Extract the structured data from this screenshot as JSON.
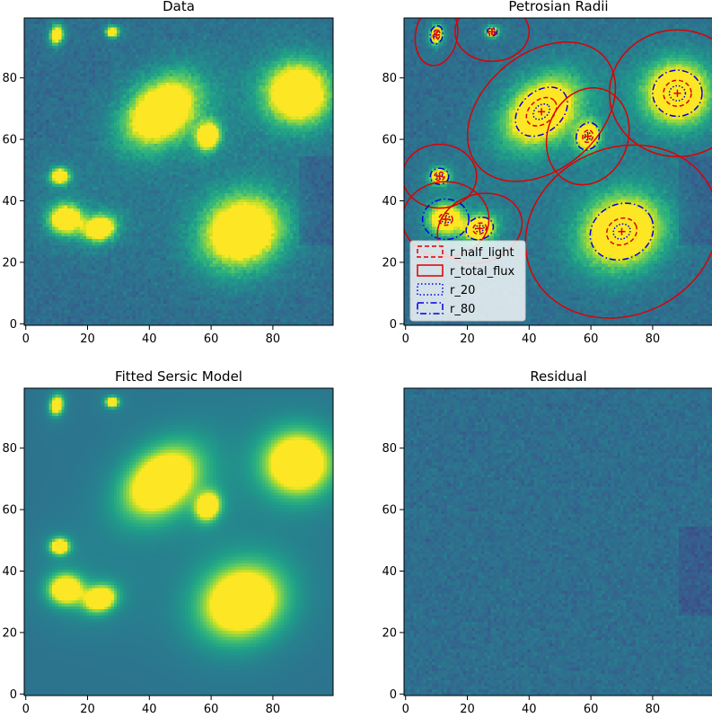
{
  "figure": {
    "colormap": "viridis",
    "panels": [
      {
        "id": "data",
        "title": "Data",
        "kind": "image",
        "xlim": [
          0,
          99
        ],
        "ylim": [
          0,
          99
        ],
        "xticks": [
          "0",
          "20",
          "40",
          "60",
          "80"
        ],
        "yticks": [
          "0",
          "20",
          "40",
          "60",
          "80"
        ]
      },
      {
        "id": "petrosian",
        "title": "Petrosian Radii",
        "kind": "image_with_apertures",
        "xlim": [
          0,
          99
        ],
        "ylim": [
          0,
          99
        ],
        "xticks": [
          "0",
          "20",
          "40",
          "60",
          "80"
        ],
        "yticks": [
          "0",
          "20",
          "40",
          "60",
          "80"
        ]
      },
      {
        "id": "model",
        "title": "Fitted Sersic Model",
        "kind": "image",
        "xlim": [
          0,
          99
        ],
        "ylim": [
          0,
          99
        ],
        "xticks": [
          "0",
          "20",
          "40",
          "60",
          "80"
        ],
        "yticks": [
          "0",
          "20",
          "40",
          "60",
          "80"
        ]
      },
      {
        "id": "residual",
        "title": "Residual",
        "kind": "image",
        "xlim": [
          0,
          99
        ],
        "ylim": [
          0,
          99
        ],
        "xticks": [
          "0",
          "20",
          "40",
          "60",
          "80"
        ],
        "yticks": [
          "0",
          "20",
          "40",
          "60",
          "80"
        ]
      }
    ],
    "legend": {
      "location": "lower-left",
      "entries": [
        {
          "label": "r_half_light",
          "color": "#dd0000",
          "style": "dashed"
        },
        {
          "label": "r_total_flux",
          "color": "#dd0000",
          "style": "solid"
        },
        {
          "label": "r_20",
          "color": "#0000dd",
          "style": "dotted"
        },
        {
          "label": "r_80",
          "color": "#0000dd",
          "style": "dashdot"
        }
      ]
    }
  },
  "chart_data": {
    "type": "heatmap",
    "x_range": [
      0,
      99
    ],
    "y_range": [
      0,
      99
    ],
    "sources": [
      {
        "x": 10,
        "y": 94,
        "a": 2.2,
        "b": 1.5,
        "theta": 80,
        "r_half": 1.6,
        "r_20": 1.0,
        "r_80": 3.0,
        "r_total": 10
      },
      {
        "x": 28,
        "y": 95,
        "a": 1.5,
        "b": 1.2,
        "theta": 0,
        "r_half": 1.2,
        "r_20": 0.8,
        "r_80": 1.6,
        "r_total": 12
      },
      {
        "x": 44,
        "y": 69,
        "a": 10,
        "b": 7,
        "theta": 40,
        "r_half": 5.5,
        "r_20": 3.0,
        "r_80": 9.5,
        "r_total": 27
      },
      {
        "x": 59,
        "y": 61,
        "a": 3.3,
        "b": 2.7,
        "theta": 70,
        "r_half": 2.0,
        "r_20": 1.2,
        "r_80": 4.5,
        "r_total": 16
      },
      {
        "x": 88,
        "y": 75,
        "a": 8.0,
        "b": 7.5,
        "theta": 0,
        "r_half": 4.5,
        "r_20": 2.6,
        "r_80": 8.0,
        "r_total": 22
      },
      {
        "x": 11,
        "y": 48,
        "a": 2.2,
        "b": 1.9,
        "theta": 0,
        "r_half": 1.6,
        "r_20": 1.0,
        "r_80": 3.0,
        "r_total": 12
      },
      {
        "x": 13,
        "y": 34,
        "a": 4.0,
        "b": 3.5,
        "theta": 0,
        "r_half": 2.2,
        "r_20": 1.4,
        "r_80": 7.5,
        "r_total": 14
      },
      {
        "x": 24,
        "y": 31,
        "a": 3.8,
        "b": 3.0,
        "theta": 20,
        "r_half": 2.2,
        "r_20": 1.4,
        "r_80": 4.5,
        "r_total": 14
      },
      {
        "x": 70,
        "y": 30,
        "a": 10,
        "b": 8.5,
        "theta": 25,
        "r_half": 5.0,
        "r_20": 2.8,
        "r_80": 10.5,
        "r_total": 32
      }
    ]
  }
}
